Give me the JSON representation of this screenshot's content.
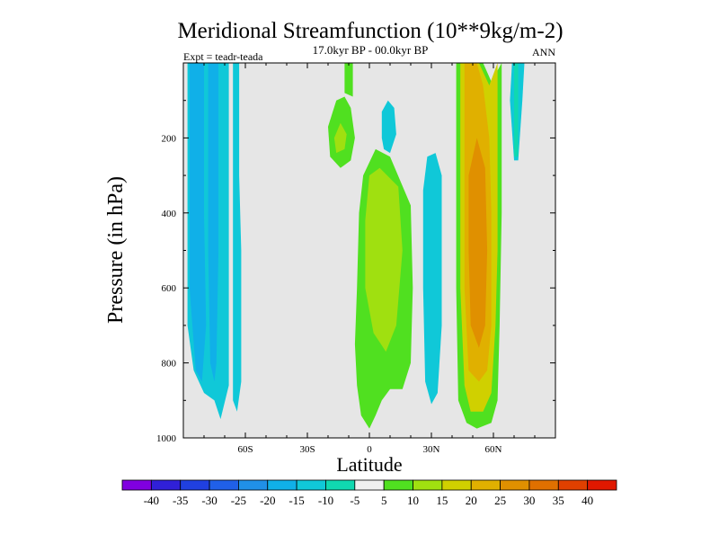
{
  "chart_data": {
    "type": "heatmap",
    "title": "Meridional Streamfunction (10**9kg/m-2)",
    "subtitle": "17.0kyr BP - 00.0kyr BP",
    "left_label": "Expt = teadr-teada",
    "right_label": "ANN",
    "xlabel": "Latitude",
    "ylabel": "Pressure (in hPa)",
    "xlim": [
      -90,
      90
    ],
    "ylim": [
      1000,
      0
    ],
    "x_ticks": [
      {
        "value": -60,
        "label": "60S"
      },
      {
        "value": -30,
        "label": "30S"
      },
      {
        "value": 0,
        "label": "0"
      },
      {
        "value": 30,
        "label": "30N"
      },
      {
        "value": 60,
        "label": "60N"
      }
    ],
    "y_ticks": [
      {
        "value": 200,
        "label": "200"
      },
      {
        "value": 400,
        "label": "400"
      },
      {
        "value": 600,
        "label": "600"
      },
      {
        "value": 800,
        "label": "800"
      },
      {
        "value": 1000,
        "label": "1000"
      }
    ],
    "background_color": "#e6e6e6",
    "colorbar": {
      "levels": [
        "-40",
        "-35",
        "-30",
        "-25",
        "-20",
        "-15",
        "-10",
        "-5",
        "5",
        "10",
        "15",
        "20",
        "25",
        "30",
        "35",
        "40"
      ],
      "colors": [
        "#8000e0",
        "#3020d8",
        "#2040e0",
        "#2060e8",
        "#2090e8",
        "#10b0e8",
        "#10c8d8",
        "#10d8b0",
        "#f0f0f0",
        "#50e020",
        "#a0e010",
        "#d0d000",
        "#e0b000",
        "#e09000",
        "#e07000",
        "#e04000",
        "#e01800"
      ]
    },
    "contour_regions": [
      {
        "name": "sh-polar-cell",
        "color": "#10c8d8",
        "points": [
          [
            -88,
            0
          ],
          [
            -68,
            0
          ],
          [
            -68,
            860
          ],
          [
            -72,
            950
          ],
          [
            -75,
            900
          ],
          [
            -80,
            880
          ],
          [
            -85,
            820
          ],
          [
            -88,
            700
          ]
        ]
      },
      {
        "name": "sh-mid-cell",
        "color": "#10c8d8",
        "points": [
          [
            -66,
            0
          ],
          [
            -63,
            0
          ],
          [
            -63,
            300
          ],
          [
            -62,
            500
          ],
          [
            -62,
            850
          ],
          [
            -64,
            930
          ],
          [
            -66,
            900
          ],
          [
            -66,
            600
          ]
        ]
      },
      {
        "name": "sh-polar-core",
        "color": "#10b0e8",
        "points": [
          [
            -87,
            0
          ],
          [
            -80,
            0
          ],
          [
            -80,
            400
          ],
          [
            -79,
            700
          ],
          [
            -81,
            850
          ],
          [
            -84,
            820
          ],
          [
            -87,
            600
          ]
        ]
      },
      {
        "name": "sh-mid-core",
        "color": "#10b0e8",
        "points": [
          [
            -78,
            0
          ],
          [
            -73,
            0
          ],
          [
            -73,
            500
          ],
          [
            -74,
            800
          ],
          [
            -75,
            850
          ],
          [
            -77,
            800
          ],
          [
            -78,
            500
          ]
        ]
      },
      {
        "name": "trop-upper-left",
        "color": "#50e020",
        "points": [
          [
            -20,
            170
          ],
          [
            -16,
            100
          ],
          [
            -12,
            90
          ],
          [
            -9,
            120
          ],
          [
            -7,
            200
          ],
          [
            -9,
            260
          ],
          [
            -14,
            280
          ],
          [
            -19,
            250
          ]
        ]
      },
      {
        "name": "trop-upper-core",
        "color": "#a0e010",
        "points": [
          [
            -17,
            200
          ],
          [
            -14,
            160
          ],
          [
            -11,
            190
          ],
          [
            -12,
            230
          ],
          [
            -16,
            240
          ]
        ]
      },
      {
        "name": "trop-left-column",
        "color": "#50e020",
        "points": [
          [
            -12,
            0
          ],
          [
            -8,
            0
          ],
          [
            -8,
            90
          ],
          [
            -12,
            80
          ]
        ]
      },
      {
        "name": "trop-main-cell",
        "color": "#50e020",
        "points": [
          [
            -6,
            600
          ],
          [
            -5,
            400
          ],
          [
            -3,
            300
          ],
          [
            3,
            230
          ],
          [
            10,
            250
          ],
          [
            20,
            380
          ],
          [
            21,
            600
          ],
          [
            20,
            800
          ],
          [
            16,
            870
          ],
          [
            10,
            870
          ],
          [
            6,
            900
          ],
          [
            3,
            940
          ],
          [
            0,
            975
          ],
          [
            -4,
            940
          ],
          [
            -6,
            860
          ],
          [
            -7,
            750
          ]
        ]
      },
      {
        "name": "trop-main-core",
        "color": "#a0e010",
        "points": [
          [
            -2,
            420
          ],
          [
            0,
            300
          ],
          [
            5,
            280
          ],
          [
            14,
            330
          ],
          [
            16,
            500
          ],
          [
            13,
            700
          ],
          [
            8,
            770
          ],
          [
            2,
            720
          ],
          [
            -2,
            600
          ]
        ]
      },
      {
        "name": "trop-upper-right",
        "color": "#10c8d8",
        "points": [
          [
            6,
            200
          ],
          [
            6,
            130
          ],
          [
            9,
            100
          ],
          [
            12,
            120
          ],
          [
            13,
            190
          ],
          [
            10,
            240
          ],
          [
            7,
            230
          ]
        ]
      },
      {
        "name": "subtrop-cell",
        "color": "#10c8d8",
        "points": [
          [
            26,
            340
          ],
          [
            28,
            250
          ],
          [
            32,
            240
          ],
          [
            35,
            300
          ],
          [
            35,
            700
          ],
          [
            33,
            880
          ],
          [
            30,
            910
          ],
          [
            27,
            850
          ],
          [
            26,
            600
          ]
        ]
      },
      {
        "name": "nh-mid-cell",
        "color": "#50e020",
        "points": [
          [
            42,
            0
          ],
          [
            55,
            0
          ],
          [
            59,
            50
          ],
          [
            64,
            0
          ],
          [
            64,
            400
          ],
          [
            63,
            700
          ],
          [
            62,
            900
          ],
          [
            59,
            960
          ],
          [
            52,
            975
          ],
          [
            47,
            960
          ],
          [
            43,
            900
          ],
          [
            42,
            600
          ]
        ]
      },
      {
        "name": "nh-mid-yellow",
        "color": "#d0d000",
        "points": [
          [
            44,
            0
          ],
          [
            53,
            0
          ],
          [
            58,
            60
          ],
          [
            62,
            0
          ],
          [
            62,
            500
          ],
          [
            61,
            700
          ],
          [
            59,
            880
          ],
          [
            55,
            930
          ],
          [
            49,
            930
          ],
          [
            46,
            860
          ],
          [
            44,
            600
          ]
        ]
      },
      {
        "name": "nh-mid-gold",
        "color": "#e0b000",
        "points": [
          [
            46,
            0
          ],
          [
            52,
            0
          ],
          [
            55,
            60
          ],
          [
            58,
            200
          ],
          [
            59,
            400
          ],
          [
            59,
            700
          ],
          [
            57,
            820
          ],
          [
            53,
            850
          ],
          [
            48,
            820
          ],
          [
            46,
            600
          ]
        ]
      },
      {
        "name": "nh-mid-orange",
        "color": "#e09000",
        "points": [
          [
            48,
            300
          ],
          [
            52,
            200
          ],
          [
            56,
            280
          ],
          [
            57,
            500
          ],
          [
            56,
            700
          ],
          [
            53,
            760
          ],
          [
            49,
            700
          ],
          [
            48,
            500
          ]
        ]
      },
      {
        "name": "nh-polar-column",
        "color": "#10c8d8",
        "points": [
          [
            69,
            0
          ],
          [
            75,
            0
          ],
          [
            74,
            100
          ],
          [
            72,
            260
          ],
          [
            70,
            260
          ],
          [
            68,
            100
          ]
        ]
      },
      {
        "name": "nh-polar-inner",
        "color": "#10d8b0",
        "points": [
          [
            70,
            0
          ],
          [
            72,
            0
          ],
          [
            72,
            250
          ],
          [
            70,
            250
          ]
        ]
      }
    ]
  }
}
